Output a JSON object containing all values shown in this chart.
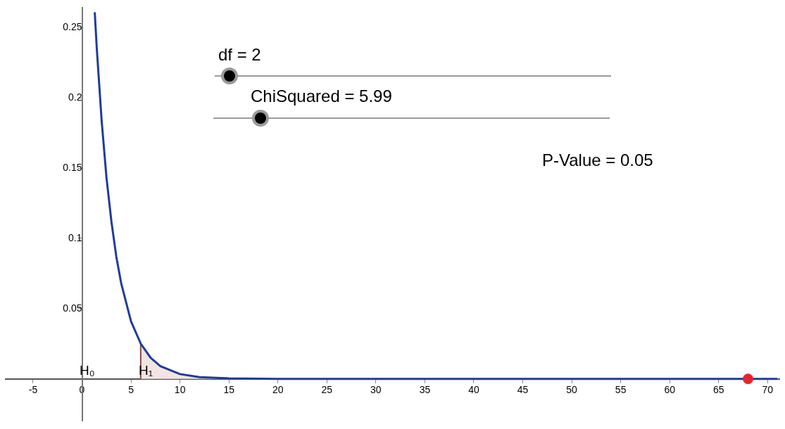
{
  "chart_data": {
    "type": "line",
    "xlim": [
      -7.8,
      71.2
    ],
    "ylim": [
      -0.03,
      0.264
    ],
    "xticks": [
      -5,
      0,
      5,
      10,
      15,
      20,
      25,
      30,
      35,
      40,
      45,
      50,
      55,
      60,
      65,
      70
    ],
    "yticks": [
      0.05,
      0.1,
      0.15,
      0.2,
      0.25
    ],
    "grid": false,
    "legend": false,
    "marker": "none",
    "series": [
      {
        "type": "area",
        "color": "#f3e4e4",
        "x": [
          5.99,
          5.99,
          7,
          8,
          10,
          12,
          15
        ],
        "values": [
          0,
          0.025,
          0.015,
          0.009,
          0.0034,
          0.0012,
          0.0003
        ]
      },
      {
        "type": "line",
        "color": "#1f3d99",
        "x": [
          1.3,
          1.5,
          2,
          2.5,
          3,
          3.5,
          4,
          5,
          6,
          7,
          8,
          10,
          12,
          15,
          20,
          30,
          71
        ],
        "values": [
          0.261,
          0.236,
          0.184,
          0.143,
          0.112,
          0.087,
          0.068,
          0.041,
          0.025,
          0.015,
          0.009,
          0.0034,
          0.0012,
          0.0003,
          0,
          0,
          0
        ]
      },
      {
        "type": "scatter",
        "color": "#e8232a",
        "marker": "circle",
        "x": [
          68
        ],
        "values": [
          0
        ]
      }
    ],
    "annotations": [
      "df = 2",
      "ChiSquared = 5.99",
      "P-Value = 0.05",
      "H₀",
      "H₁"
    ]
  }
}
